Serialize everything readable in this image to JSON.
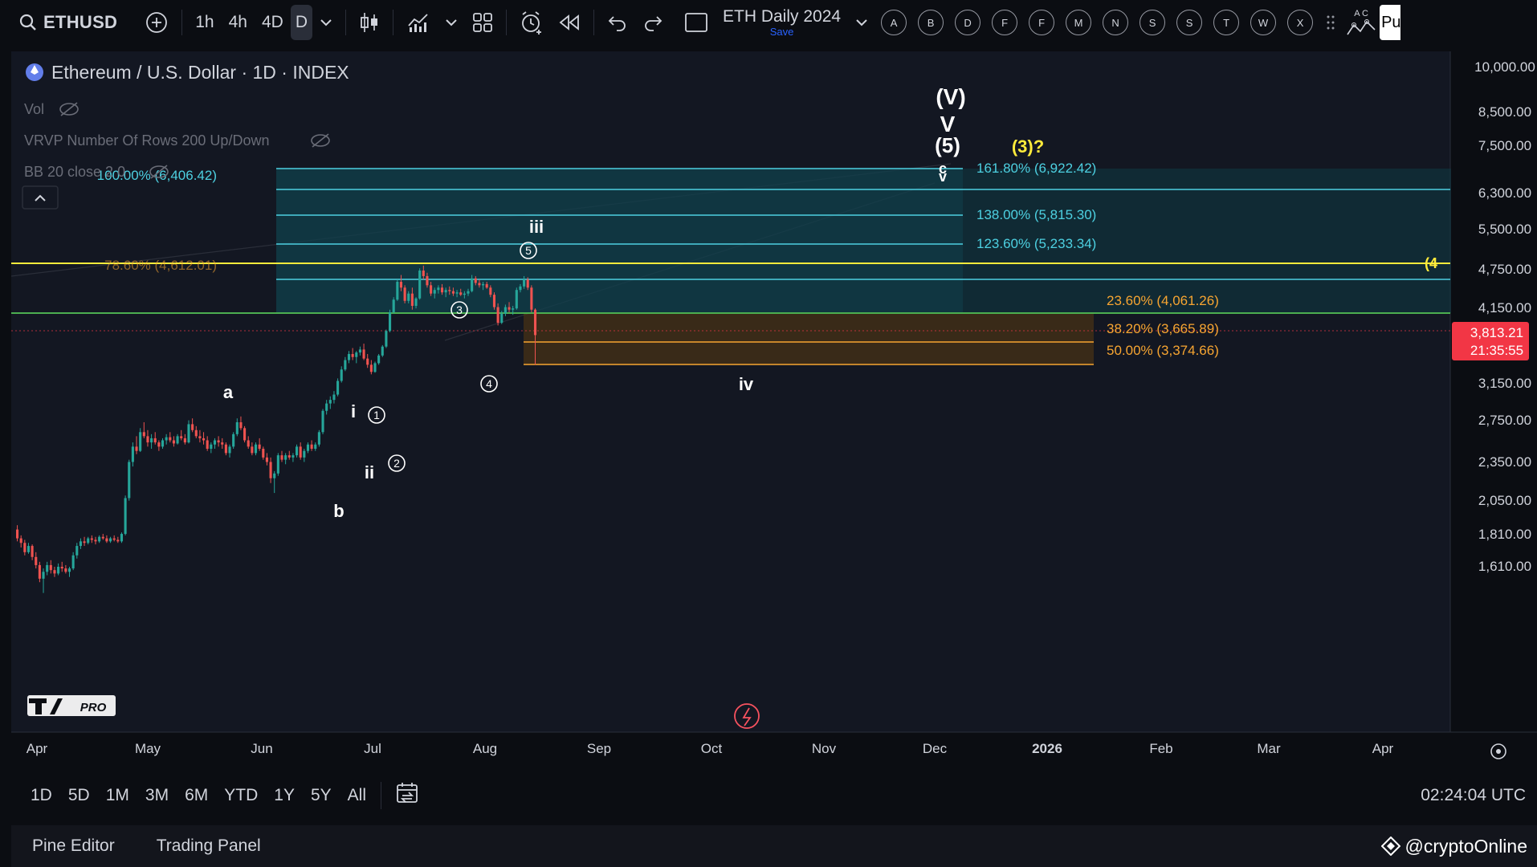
{
  "toolbar": {
    "symbol": "ETHUSD",
    "intervals": [
      "1h",
      "4h",
      "4D",
      "D"
    ],
    "active_interval": "D",
    "layout_name": "ETH Daily 2024",
    "layout_save": "Save",
    "alert_letters": [
      "A",
      "B",
      "D",
      "F",
      "F",
      "M",
      "N",
      "S",
      "S",
      "T",
      "W",
      "X"
    ],
    "right_letters": "A C",
    "right_cut": "Pu"
  },
  "legend": {
    "title": "Ethereum / U.S. Dollar · 1D · INDEX",
    "indicators": [
      "Vol",
      "VRVP Number Of Rows 200 Up/Down",
      "BB 20 close 2 0"
    ]
  },
  "colors": {
    "bg": "#131722",
    "up": "#26a69a",
    "down": "#ef5350",
    "cyan": "#4dd0e1",
    "yellow": "#ffeb3b",
    "green": "#4caf50",
    "orange": "#f7a531",
    "price_tag": "#f23645"
  },
  "chart_data": {
    "type": "candlestick",
    "price_axis_labels": [
      "10,000.00",
      "8,500.00",
      "7,500.00",
      "6,300.00",
      "5,500.00",
      "4,750.00",
      "4,150.00",
      "3,150.00",
      "2,750.00",
      "2,350.00",
      "2,050.00",
      "1,810.00",
      "1,610.00"
    ],
    "time_axis_labels": [
      "Apr",
      "May",
      "Jun",
      "Jul",
      "Aug",
      "Sep",
      "Oct",
      "Nov",
      "Dec",
      "2026",
      "Feb",
      "Mar",
      "Apr"
    ],
    "current_price": "3,813.21",
    "countdown": "21:35:55",
    "fib_levels": [
      {
        "label": "100.00% (6,406.42)",
        "price": 6406.42
      },
      {
        "label": "78.60% (4,612.01)",
        "price": 4612.01
      },
      {
        "label": "161.80% (6,922.42)",
        "price": 6922.42
      },
      {
        "label": "138.00% (5,815.30)",
        "price": 5815.3
      },
      {
        "label": "123.60% (5,233.34)",
        "price": 5233.34
      },
      {
        "label": "23.60% (4,061.26)",
        "price": 4061.26
      },
      {
        "label": "38.20% (3,665.89)",
        "price": 3665.89
      },
      {
        "label": "50.00% (3,374.66)",
        "price": 3374.66
      }
    ],
    "wave_labels": [
      "(V)",
      "V",
      "(5)",
      "(3)?",
      "c",
      "v",
      "iii",
      "iv",
      "a",
      "b",
      "i",
      "ii",
      "5",
      "3",
      "4",
      "1",
      "2"
    ],
    "right_edge_label": "(4",
    "candles": [
      [
        1850,
        1880,
        1770,
        1790
      ],
      [
        1790,
        1810,
        1730,
        1760
      ],
      [
        1760,
        1780,
        1680,
        1700
      ],
      [
        1700,
        1760,
        1690,
        1740
      ],
      [
        1740,
        1750,
        1650,
        1670
      ],
      [
        1670,
        1700,
        1600,
        1620
      ],
      [
        1620,
        1640,
        1520,
        1540
      ],
      [
        1540,
        1600,
        1460,
        1580
      ],
      [
        1580,
        1640,
        1560,
        1620
      ],
      [
        1620,
        1650,
        1570,
        1590
      ],
      [
        1590,
        1610,
        1550,
        1570
      ],
      [
        1570,
        1630,
        1560,
        1610
      ],
      [
        1610,
        1640,
        1580,
        1600
      ],
      [
        1600,
        1620,
        1570,
        1580
      ],
      [
        1580,
        1610,
        1550,
        1600
      ],
      [
        1600,
        1700,
        1590,
        1680
      ],
      [
        1680,
        1760,
        1660,
        1740
      ],
      [
        1740,
        1790,
        1720,
        1770
      ],
      [
        1770,
        1800,
        1740,
        1760
      ],
      [
        1760,
        1800,
        1750,
        1790
      ],
      [
        1790,
        1810,
        1760,
        1780
      ],
      [
        1780,
        1800,
        1750,
        1770
      ],
      [
        1770,
        1810,
        1760,
        1800
      ],
      [
        1800,
        1820,
        1780,
        1790
      ],
      [
        1790,
        1810,
        1760,
        1770
      ],
      [
        1770,
        1800,
        1760,
        1790
      ],
      [
        1790,
        1810,
        1770,
        1780
      ],
      [
        1780,
        1800,
        1760,
        1770
      ],
      [
        1770,
        1830,
        1760,
        1820
      ],
      [
        1820,
        2100,
        1810,
        2080
      ],
      [
        2080,
        2400,
        2060,
        2380
      ],
      [
        2380,
        2560,
        2340,
        2520
      ],
      [
        2520,
        2620,
        2450,
        2480
      ],
      [
        2480,
        2700,
        2470,
        2660
      ],
      [
        2660,
        2760,
        2600,
        2620
      ],
      [
        2620,
        2680,
        2520,
        2560
      ],
      [
        2560,
        2640,
        2500,
        2600
      ],
      [
        2600,
        2660,
        2540,
        2560
      ],
      [
        2560,
        2580,
        2480,
        2520
      ],
      [
        2520,
        2600,
        2500,
        2580
      ],
      [
        2580,
        2640,
        2540,
        2610
      ],
      [
        2610,
        2660,
        2560,
        2580
      ],
      [
        2580,
        2620,
        2520,
        2550
      ],
      [
        2550,
        2640,
        2540,
        2620
      ],
      [
        2620,
        2680,
        2580,
        2600
      ],
      [
        2600,
        2640,
        2540,
        2560
      ],
      [
        2560,
        2780,
        2550,
        2740
      ],
      [
        2740,
        2800,
        2660,
        2680
      ],
      [
        2680,
        2720,
        2600,
        2620
      ],
      [
        2620,
        2680,
        2560,
        2600
      ],
      [
        2600,
        2660,
        2540,
        2580
      ],
      [
        2580,
        2620,
        2480,
        2500
      ],
      [
        2500,
        2560,
        2460,
        2540
      ],
      [
        2540,
        2600,
        2500,
        2580
      ],
      [
        2580,
        2620,
        2520,
        2560
      ],
      [
        2560,
        2600,
        2500,
        2540
      ],
      [
        2540,
        2560,
        2440,
        2460
      ],
      [
        2460,
        2540,
        2420,
        2520
      ],
      [
        2520,
        2660,
        2500,
        2640
      ],
      [
        2640,
        2800,
        2620,
        2760
      ],
      [
        2760,
        2820,
        2680,
        2700
      ],
      [
        2700,
        2720,
        2560,
        2580
      ],
      [
        2580,
        2620,
        2500,
        2520
      ],
      [
        2520,
        2560,
        2440,
        2460
      ],
      [
        2460,
        2560,
        2440,
        2540
      ],
      [
        2540,
        2600,
        2480,
        2500
      ],
      [
        2500,
        2520,
        2400,
        2420
      ],
      [
        2420,
        2460,
        2350,
        2380
      ],
      [
        2380,
        2420,
        2200,
        2240
      ],
      [
        2240,
        2300,
        2120,
        2280
      ],
      [
        2280,
        2460,
        2260,
        2440
      ],
      [
        2440,
        2480,
        2380,
        2400
      ],
      [
        2400,
        2460,
        2360,
        2440
      ],
      [
        2440,
        2480,
        2400,
        2420
      ],
      [
        2420,
        2460,
        2380,
        2440
      ],
      [
        2440,
        2540,
        2420,
        2520
      ],
      [
        2520,
        2560,
        2400,
        2420
      ],
      [
        2420,
        2500,
        2380,
        2480
      ],
      [
        2480,
        2560,
        2460,
        2540
      ],
      [
        2540,
        2580,
        2480,
        2500
      ],
      [
        2500,
        2560,
        2480,
        2540
      ],
      [
        2540,
        2680,
        2520,
        2660
      ],
      [
        2660,
        2900,
        2640,
        2880
      ],
      [
        2880,
        3000,
        2840,
        2960
      ],
      [
        2960,
        3040,
        2900,
        3000
      ],
      [
        3000,
        3100,
        2960,
        3060
      ],
      [
        3060,
        3250,
        3040,
        3220
      ],
      [
        3220,
        3400,
        3200,
        3360
      ],
      [
        3360,
        3520,
        3340,
        3480
      ],
      [
        3480,
        3600,
        3440,
        3560
      ],
      [
        3560,
        3640,
        3480,
        3520
      ],
      [
        3520,
        3600,
        3440,
        3580
      ],
      [
        3580,
        3660,
        3540,
        3620
      ],
      [
        3620,
        3700,
        3480,
        3500
      ],
      [
        3500,
        3560,
        3380,
        3420
      ],
      [
        3420,
        3480,
        3300,
        3330
      ],
      [
        3330,
        3460,
        3320,
        3440
      ],
      [
        3440,
        3560,
        3420,
        3540
      ],
      [
        3540,
        3680,
        3520,
        3660
      ],
      [
        3660,
        3900,
        3640,
        3880
      ],
      [
        3880,
        4200,
        3860,
        4160
      ],
      [
        4160,
        4400,
        4140,
        4360
      ],
      [
        4360,
        4700,
        4340,
        4660
      ],
      [
        4660,
        4780,
        4500,
        4560
      ],
      [
        4560,
        4600,
        4300,
        4340
      ],
      [
        4340,
        4500,
        4300,
        4460
      ],
      [
        4460,
        4560,
        4200,
        4260
      ],
      [
        4260,
        4400,
        4220,
        4380
      ],
      [
        4380,
        4900,
        4360,
        4860
      ],
      [
        4860,
        4950,
        4700,
        4760
      ],
      [
        4760,
        4820,
        4560,
        4600
      ],
      [
        4600,
        4660,
        4420,
        4460
      ],
      [
        4460,
        4560,
        4380,
        4520
      ],
      [
        4520,
        4600,
        4460,
        4560
      ],
      [
        4560,
        4620,
        4440,
        4480
      ],
      [
        4480,
        4560,
        4400,
        4520
      ],
      [
        4520,
        4580,
        4440,
        4500
      ],
      [
        4500,
        4560,
        4420,
        4460
      ],
      [
        4460,
        4520,
        4400,
        4480
      ],
      [
        4480,
        4540,
        4420,
        4440
      ],
      [
        4440,
        4500,
        4380,
        4460
      ],
      [
        4460,
        4540,
        4420,
        4500
      ],
      [
        4500,
        4780,
        4480,
        4720
      ],
      [
        4720,
        4760,
        4600,
        4640
      ],
      [
        4640,
        4700,
        4560,
        4600
      ],
      [
        4600,
        4660,
        4520,
        4620
      ],
      [
        4620,
        4660,
        4540,
        4560
      ],
      [
        4560,
        4600,
        4400,
        4440
      ],
      [
        4440,
        4480,
        4200,
        4240
      ],
      [
        4240,
        4300,
        3960,
        4000
      ],
      [
        4000,
        4180,
        3980,
        4140
      ],
      [
        4140,
        4280,
        4100,
        4240
      ],
      [
        4240,
        4320,
        4160,
        4200
      ],
      [
        4200,
        4260,
        4120,
        4220
      ],
      [
        4220,
        4560,
        4200,
        4520
      ],
      [
        4520,
        4620,
        4480,
        4580
      ],
      [
        4580,
        4760,
        4540,
        4700
      ],
      [
        4700,
        4740,
        4520,
        4560
      ],
      [
        4560,
        4600,
        4160,
        4200
      ],
      [
        4200,
        4220,
        3420,
        3820
      ]
    ]
  },
  "bottom": {
    "ranges": [
      "1D",
      "5D",
      "1M",
      "3M",
      "6M",
      "YTD",
      "1Y",
      "5Y",
      "All"
    ],
    "time": "02:24:04 UTC"
  },
  "footer": {
    "tabs": [
      "Pine Editor",
      "Trading Panel"
    ],
    "watermark": "@cryptoOnline"
  },
  "logo": {
    "text": "PRO"
  }
}
